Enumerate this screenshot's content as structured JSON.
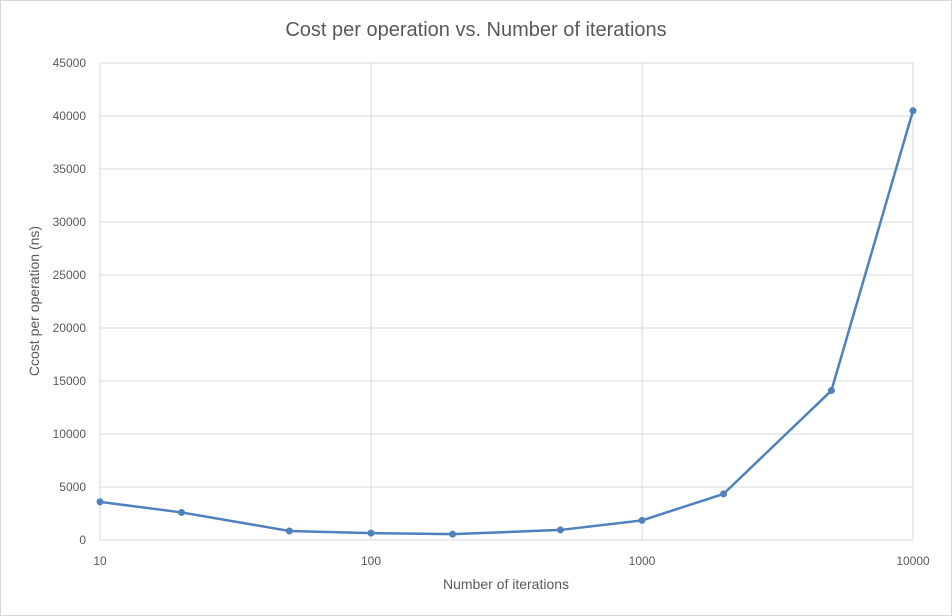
{
  "chart_data": {
    "type": "line",
    "title": "Cost per operation vs. Number of iterations",
    "xlabel": "Number of iterations",
    "ylabel": "Ccost per operation (ns)",
    "x_scale": "log",
    "xlim": [
      10,
      10000
    ],
    "ylim": [
      0,
      45000
    ],
    "x_ticks": [
      10,
      100,
      1000,
      10000
    ],
    "x_tick_labels": [
      "10",
      "100",
      "1000",
      "10000"
    ],
    "y_ticks": [
      0,
      5000,
      10000,
      15000,
      20000,
      25000,
      30000,
      35000,
      40000,
      45000
    ],
    "y_tick_labels": [
      "0",
      "5000",
      "10000",
      "15000",
      "20000",
      "25000",
      "30000",
      "35000",
      "40000",
      "45000"
    ],
    "grid": true,
    "legend": "none",
    "series": [
      {
        "color": "#4f81bd",
        "x": [
          10,
          20,
          50,
          100,
          200,
          500,
          1000,
          2000,
          5000,
          10000
        ],
        "y": [
          3600,
          2600,
          850,
          650,
          550,
          950,
          1850,
          4350,
          14100,
          40500
        ]
      }
    ]
  }
}
